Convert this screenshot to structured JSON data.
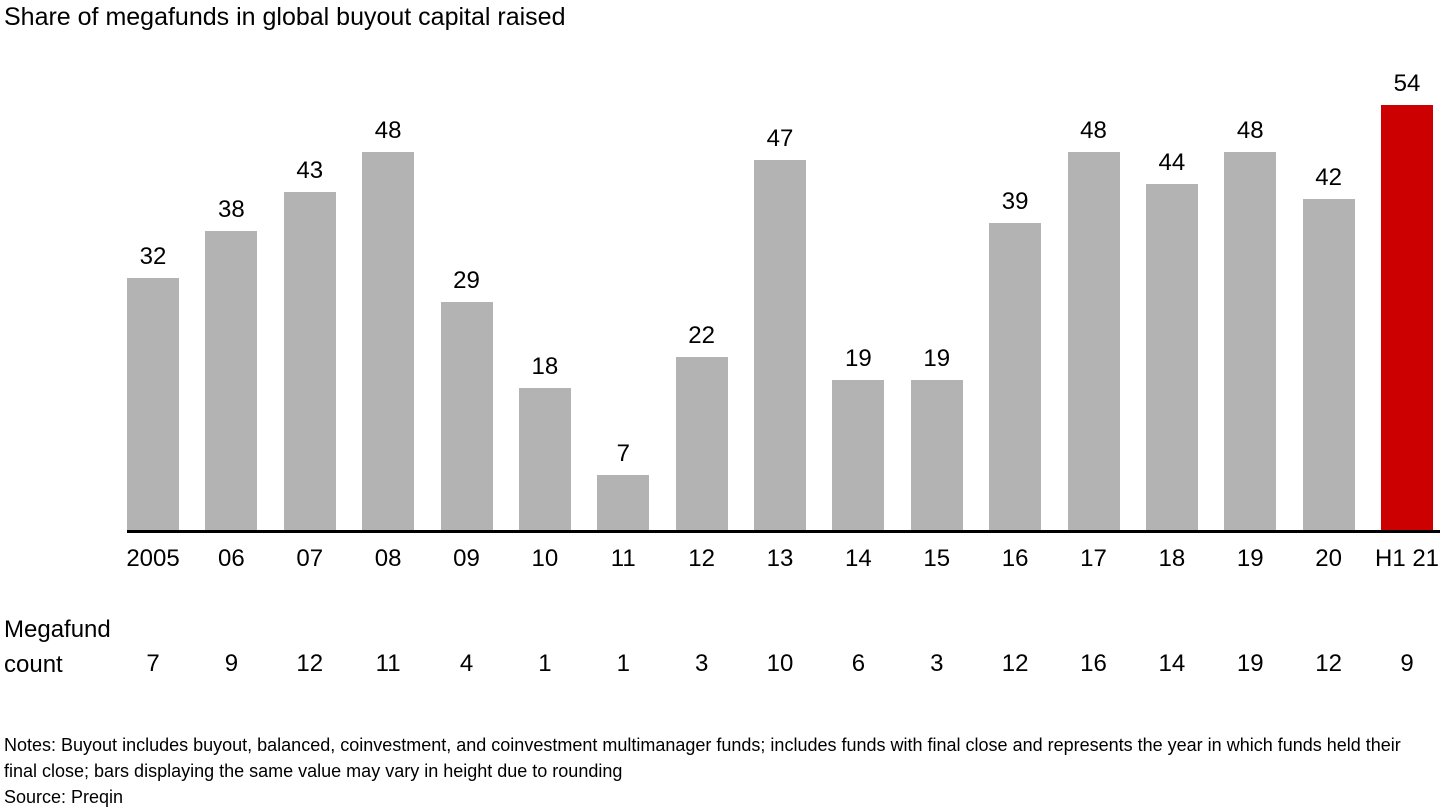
{
  "title": "Share of megafunds in global buyout capital raised",
  "chart_data": {
    "type": "bar",
    "title": "Share of megafunds in global buyout capital raised",
    "categories": [
      "2005",
      "06",
      "07",
      "08",
      "09",
      "10",
      "11",
      "12",
      "13",
      "14",
      "15",
      "16",
      "17",
      "18",
      "19",
      "20",
      "H1 21"
    ],
    "values": [
      32,
      38,
      43,
      48,
      29,
      18,
      7,
      22,
      47,
      19,
      19,
      39,
      48,
      44,
      48,
      42,
      54
    ],
    "megafund_counts": [
      7,
      9,
      12,
      11,
      4,
      1,
      1,
      3,
      10,
      6,
      3,
      12,
      16,
      14,
      19,
      12,
      9
    ],
    "highlight_index": 16,
    "bar_color": "#b3b3b3",
    "highlight_color": "#cc0000",
    "axis_color": "#000000",
    "ylim": [
      0,
      60
    ],
    "data_labels": true,
    "grid": false,
    "legend": "none"
  },
  "row_label": {
    "line1": "Megafund",
    "line2": "count"
  },
  "notes": "Notes: Buyout includes buyout, balanced, coinvestment, and coinvestment multimanager funds; includes funds with final close and represents the year in which funds held their final close; bars displaying the same value may vary in height due to rounding",
  "source": "Source: Preqin"
}
